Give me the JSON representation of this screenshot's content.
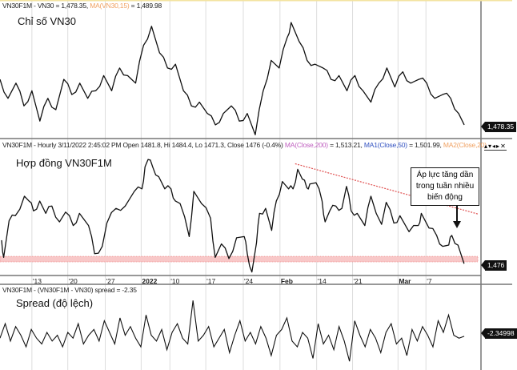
{
  "panels": {
    "top": {
      "header_main": "VN30F1M - VN30 = 1,478.35, ",
      "header_ma": "MA(VN30,15)",
      "header_ma_val": " = 1,489.98",
      "title": "Chỉ số VN30",
      "last_label": "1,478.35"
    },
    "middle": {
      "header_main": "VN30F1M - Hourly 3/11/2022 2:45:02 PM Open 1481.8, Hi 1484.4, Lo 1471.3, Close 1476 (-0.4%) ",
      "header_ma": "MA(Close,200)",
      "header_ma_val": " = 1,513.21, ",
      "header_ma1": "MA1(Close,50)",
      "header_ma1_val": " = 1,501.99, ",
      "header_ma2": "MA2(Close,20)",
      "title": "Hợp đồng VN30F1M",
      "last_label": "1,476",
      "callout": "Áp lực tăng dần trong tuần nhiều biến động",
      "window_controls": "▴▾◂▸✕"
    },
    "bottom": {
      "header_main": "VN30F1M - (VN30F1M - VN30) spread = -2.35",
      "title": "Spread (độ lệch)",
      "last_label": "-2.34998"
    }
  },
  "colors": {
    "line": "#111111",
    "ma": "#f0a060",
    "ma200": "#c060c0",
    "ma1": "#3050c0",
    "trend": "#e05050",
    "band": "#f8c8c8",
    "grid": "#dddddd"
  },
  "chart_data": [
    {
      "type": "line",
      "title": "Chỉ số VN30",
      "series_name": "VN30F1M - VN30",
      "ylim": [
        1461,
        1630
      ],
      "xlim": [
        0,
        300
      ],
      "points": [
        [
          0,
          1538
        ],
        [
          5,
          1513
        ],
        [
          10,
          1533
        ],
        [
          15,
          1503
        ],
        [
          20,
          1523
        ],
        [
          25,
          1483
        ],
        [
          30,
          1513
        ],
        [
          35,
          1498
        ],
        [
          40,
          1538
        ],
        [
          45,
          1518
        ],
        [
          50,
          1533
        ],
        [
          55,
          1513
        ],
        [
          60,
          1523
        ],
        [
          65,
          1543
        ],
        [
          70,
          1523
        ],
        [
          75,
          1553
        ],
        [
          80,
          1543
        ],
        [
          85,
          1533
        ],
        [
          90,
          1583
        ],
        [
          95,
          1608
        ],
        [
          100,
          1573
        ],
        [
          105,
          1553
        ],
        [
          110,
          1558
        ],
        [
          115,
          1523
        ],
        [
          120,
          1503
        ],
        [
          125,
          1508
        ],
        [
          130,
          1493
        ],
        [
          135,
          1478
        ],
        [
          140,
          1493
        ],
        [
          145,
          1503
        ],
        [
          150,
          1483
        ],
        [
          155,
          1493
        ],
        [
          160,
          1465
        ],
        [
          165,
          1523
        ],
        [
          170,
          1563
        ],
        [
          175,
          1553
        ],
        [
          180,
          1593
        ],
        [
          182.5,
          1613
        ],
        [
          187.5,
          1588
        ],
        [
          192.5,
          1563
        ],
        [
          197.5,
          1558
        ],
        [
          202.5,
          1553
        ],
        [
          207.5,
          1538
        ],
        [
          212.5,
          1543
        ],
        [
          217.5,
          1523
        ],
        [
          222.5,
          1543
        ],
        [
          227.5,
          1523
        ],
        [
          232.5,
          1508
        ],
        [
          237.5,
          1533
        ],
        [
          242.5,
          1553
        ],
        [
          247.5,
          1528
        ],
        [
          252.5,
          1548
        ],
        [
          257.5,
          1533
        ],
        [
          262.5,
          1538
        ],
        [
          267.5,
          1533
        ],
        [
          272.5,
          1513
        ],
        [
          277.5,
          1518
        ],
        [
          282.5,
          1513
        ],
        [
          287.5,
          1493
        ],
        [
          291,
          1478
        ]
      ]
    },
    {
      "type": "line",
      "title": "Hợp đồng VN30F1M",
      "series_name": "VN30F1M Hourly Close",
      "ylim": [
        1464,
        1602
      ],
      "xlim": [
        0,
        300
      ],
      "x_ticks": [
        {
          "t": 21.5,
          "label": "13"
        },
        {
          "t": 44,
          "label": "20"
        },
        {
          "t": 67.5,
          "label": "27"
        },
        {
          "t": 90,
          "label": "2022"
        },
        {
          "t": 108,
          "label": "10"
        },
        {
          "t": 130.5,
          "label": "17"
        },
        {
          "t": 154,
          "label": "24"
        },
        {
          "t": 177,
          "label": "Feb"
        },
        {
          "t": 200,
          "label": "14"
        },
        {
          "t": 222.5,
          "label": "21"
        },
        {
          "t": 251,
          "label": "Mar"
        },
        {
          "t": 268.5,
          "label": "7"
        }
      ],
      "support_band": [
        1478,
        1484
      ],
      "trendline": [
        [
          185,
          1585
        ],
        [
          300,
          1530
        ]
      ],
      "points": [
        [
          1,
          1501.6
        ],
        [
          2.3,
          1482.9
        ],
        [
          5.7,
          1522.9
        ],
        [
          9.6,
          1528.3
        ],
        [
          15.3,
          1549.6
        ],
        [
          18.2,
          1544.3
        ],
        [
          21,
          1533.6
        ],
        [
          24.9,
          1544.3
        ],
        [
          28.7,
          1530.9
        ],
        [
          32.5,
          1538.9
        ],
        [
          37.3,
          1521.6
        ],
        [
          41.1,
          1532.3
        ],
        [
          45.9,
          1517.6
        ],
        [
          49.8,
          1530.9
        ],
        [
          55.5,
          1517.6
        ],
        [
          59.3,
          1486.9
        ],
        [
          64.1,
          1494.9
        ],
        [
          67,
          1520.3
        ],
        [
          72.7,
          1536.3
        ],
        [
          78.5,
          1538.9
        ],
        [
          84.2,
          1554.9
        ],
        [
          89,
          1557.6
        ],
        [
          90.9,
          1581.6
        ],
        [
          92.8,
          1589.6
        ],
        [
          95.7,
          1581.6
        ],
        [
          99.5,
          1570.9
        ],
        [
          103.3,
          1557.6
        ],
        [
          107.2,
          1557.6
        ],
        [
          110,
          1544.3
        ],
        [
          112.9,
          1541.6
        ],
        [
          118.6,
          1505.6
        ],
        [
          121.5,
          1554.9
        ],
        [
          126.3,
          1541.6
        ],
        [
          132,
          1525.6
        ],
        [
          134.9,
          1482.9
        ],
        [
          138.8,
          1497.6
        ],
        [
          143.5,
          1481.6
        ],
        [
          148.3,
          1504.3
        ],
        [
          153.1,
          1505.6
        ],
        [
          155,
          1486.9
        ],
        [
          157.9,
          1466.9
        ],
        [
          160.8,
          1498.9
        ],
        [
          162.7,
          1530.9
        ],
        [
          166.5,
          1536.3
        ],
        [
          170.3,
          1512.3
        ],
        [
          173.2,
          1544.3
        ],
        [
          177,
          1565.6
        ],
        [
          180.9,
          1557.6
        ],
        [
          183.7,
          1557.6
        ],
        [
          186.6,
          1578.9
        ],
        [
          189.5,
          1568.3
        ],
        [
          192.3,
          1558.9
        ],
        [
          194.2,
          1562.9
        ],
        [
          198.1,
          1564.3
        ],
        [
          201.9,
          1544.3
        ],
        [
          203.8,
          1521.6
        ],
        [
          206.7,
          1533.6
        ],
        [
          210.5,
          1538.9
        ],
        [
          214.3,
          1536.3
        ],
        [
          217.2,
          1560.3
        ],
        [
          220.1,
          1533.6
        ],
        [
          223.9,
          1530.9
        ],
        [
          228.7,
          1517.6
        ],
        [
          232.5,
          1549.6
        ],
        [
          239.2,
          1518.9
        ],
        [
          242.1,
          1542.9
        ],
        [
          246.9,
          1520.3
        ],
        [
          250.7,
          1528.3
        ],
        [
          256.4,
          1510.9
        ],
        [
          262.2,
          1517.6
        ],
        [
          264.1,
          1530.9
        ],
        [
          268.9,
          1514.9
        ],
        [
          273.7,
          1506.9
        ],
        [
          277.5,
          1494.9
        ],
        [
          281.3,
          1496.3
        ],
        [
          283.2,
          1506.9
        ],
        [
          287.1,
          1496.3
        ],
        [
          290.9,
          1476
        ]
      ]
    },
    {
      "type": "line",
      "title": "Spread (độ lệch)",
      "series_name": "VN30F1M - VN30 spread",
      "ylim": [
        -14,
        12
      ],
      "xlim": [
        0,
        300
      ],
      "values": [
        -3,
        2,
        -4,
        1,
        -2,
        -6,
        0,
        -3,
        -5,
        -1,
        -4,
        -2,
        -6,
        -1,
        -3,
        2,
        -5,
        -2,
        0,
        -4,
        3,
        -1,
        -5,
        4,
        -2,
        1,
        -3,
        -6,
        5,
        -2,
        -4,
        0,
        -7,
        -1,
        2,
        -3,
        -5,
        10,
        -4,
        -2,
        1,
        -6,
        -3,
        0,
        -8,
        -2,
        3,
        -4,
        -1,
        -5,
        1,
        -3,
        -9,
        -2,
        0,
        4,
        -4,
        -6,
        -1,
        -3,
        -10,
        2,
        -5,
        -2,
        -7,
        1,
        -4,
        -11,
        3,
        -2,
        -6,
        0,
        -3,
        -8,
        -1,
        2,
        -5,
        -3,
        -9,
        0,
        -4,
        1,
        -2,
        -6,
        3,
        -1,
        5,
        -2,
        -3,
        -2.35
      ]
    }
  ]
}
